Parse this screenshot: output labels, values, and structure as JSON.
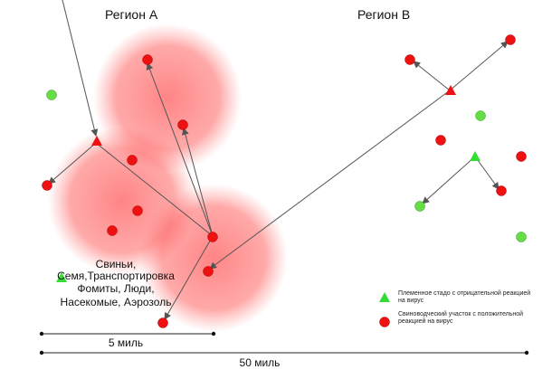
{
  "regions": {
    "a_title": "Регион А",
    "b_title": "Регион В"
  },
  "routes_label": {
    "lines": [
      "Свиньи,",
      "Семя,Транспортировка",
      "Фомиты, Люди,",
      "Насекомые, Аэрозоль"
    ]
  },
  "scale": {
    "short_label": "5 миль",
    "long_label": "50 миль"
  },
  "legend": {
    "negative": {
      "lines": [
        "Племенное стадо с отрицательной реакцией",
        "на вирус"
      ],
      "color": "#33dd33",
      "icon": "triangle-icon"
    },
    "positive": {
      "lines": [
        "Свиноводческий участок с положительной",
        "реакцией на вирус"
      ],
      "color": "#ee1111",
      "icon": "circle-icon"
    }
  },
  "colors": {
    "infection_zone": "#ff3333",
    "arrow": "#555555",
    "negative_site": "#33dd33",
    "positive_site": "#ee1111"
  }
}
